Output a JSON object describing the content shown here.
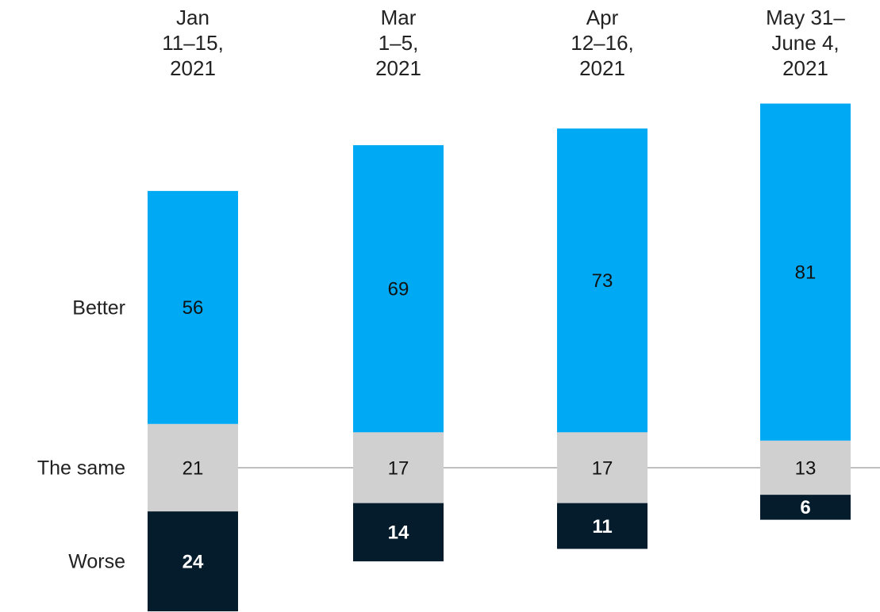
{
  "chart_data": {
    "type": "bar",
    "layout": "diverging",
    "categories": [
      "Jan\n11–15,\n2021",
      "Mar\n1–5,\n2021",
      "Apr\n12–16,\n2021",
      "May 31–\nJune 4,\n2021"
    ],
    "series": [
      {
        "name": "Better",
        "color": "#00a9f4",
        "values": [
          56,
          69,
          73,
          81
        ]
      },
      {
        "name": "The same",
        "color": "#d0d0d0",
        "values": [
          21,
          17,
          17,
          13
        ]
      },
      {
        "name": "Worse",
        "color": "#051c2c",
        "values": [
          24,
          14,
          11,
          6
        ]
      }
    ]
  }
}
